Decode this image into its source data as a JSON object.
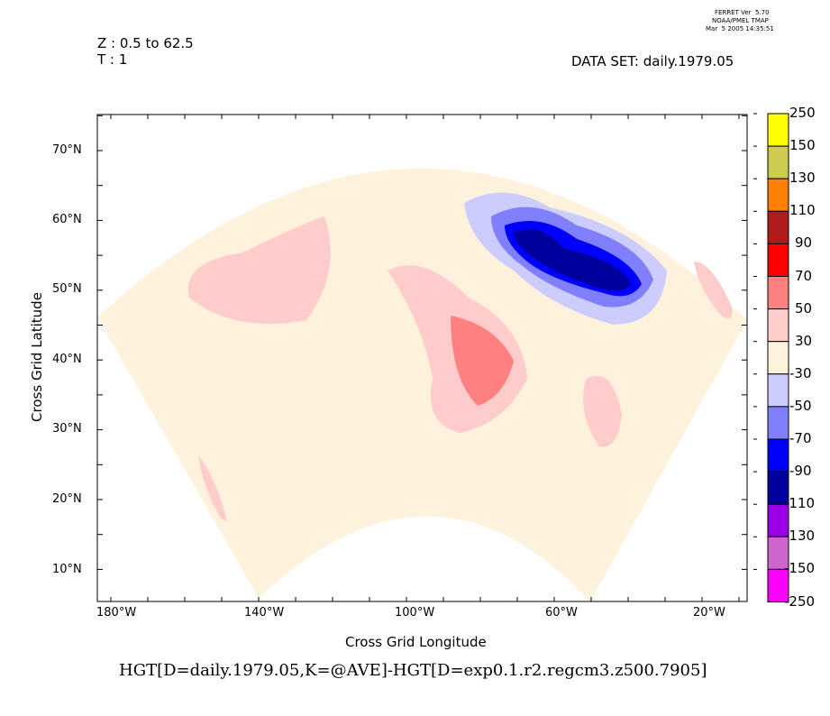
{
  "header": {
    "z_range": "Z : 0.5 to 62.5",
    "time": "T : 1",
    "dataset": "DATA SET: daily.1979.05",
    "ferret_version": "FERRET Ver  5.70",
    "ferret_org": "NOAA/PMEL TMAP",
    "ferret_date": "Mar  5 2005 14:35:51"
  },
  "chart_data": {
    "type": "heatmap",
    "title": "HGT[D=daily.1979.05,K=@AVE]-HGT[D=exp0.1.r2.regcm3.z500.7905]",
    "xlabel": "Cross Grid Longitude",
    "ylabel": "Cross Grid Latitude",
    "x_ticks": [
      "180°W",
      "140°W",
      "100°W",
      "60°W",
      "20°W"
    ],
    "y_ticks": [
      "70°N",
      "60°N",
      "50°N",
      "40°N",
      "30°N",
      "20°N",
      "10°N"
    ],
    "colorbar": {
      "labels": [
        "250",
        "150",
        "130",
        "110",
        "90",
        "70",
        "50",
        "30",
        "-30",
        "-50",
        "-70",
        "-90",
        "-110",
        "-130",
        "-150",
        "-250"
      ],
      "colors": [
        "#ffff00",
        "#cccc50",
        "#ff8000",
        "#b01c1c",
        "#ff0000",
        "#ff8080",
        "#ffcccc",
        "#fff2dc",
        "#ccccff",
        "#8080ff",
        "#0000ff",
        "#00009c",
        "#9900e6",
        "#cc66cc",
        "#ff00ff"
      ]
    },
    "features": [
      {
        "region": "Labrador Sea / south of Greenland",
        "range": "-110 to -30",
        "sign": "negative"
      },
      {
        "region": "Eastern United States",
        "range": "30 to 90",
        "sign": "positive"
      },
      {
        "region": "Northeast Pacific",
        "range": "30 to 50",
        "sign": "positive"
      },
      {
        "region": "Central Atlantic",
        "range": "30 to 50",
        "sign": "positive"
      }
    ]
  }
}
